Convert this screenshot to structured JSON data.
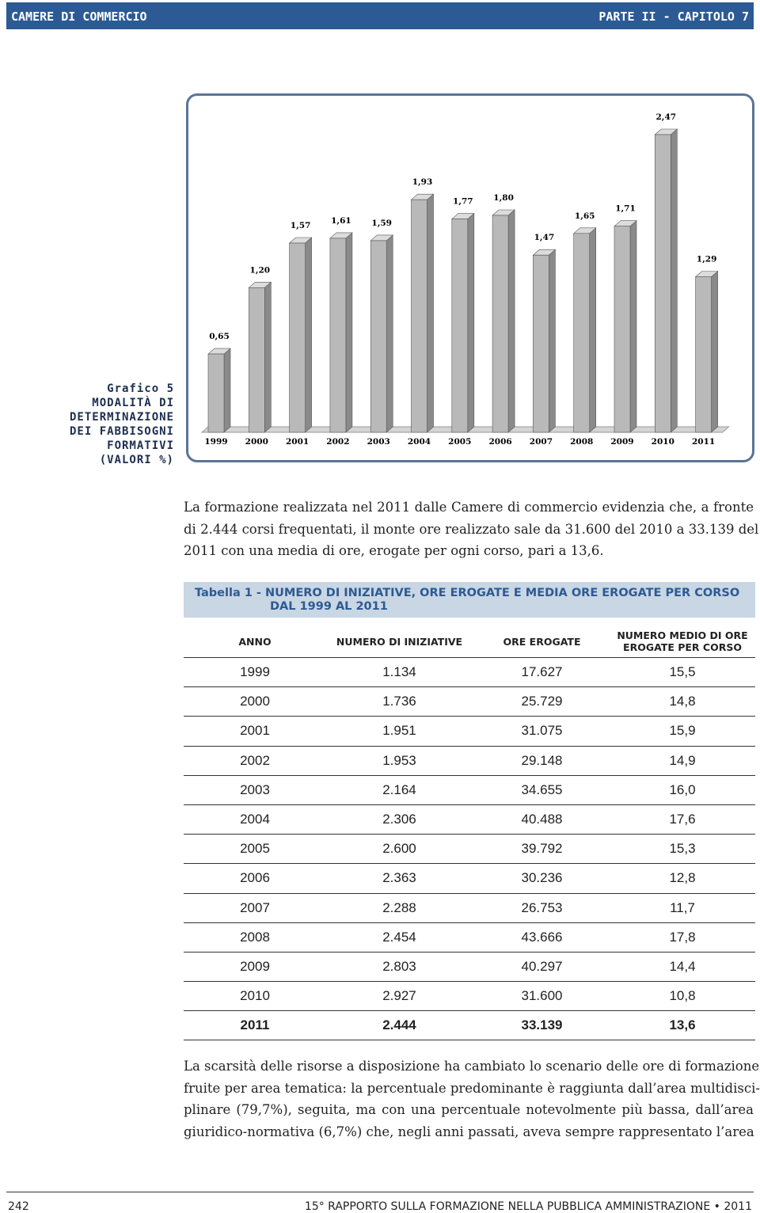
{
  "header": {
    "left": "CAMERE DI COMMERCIO",
    "right": "PARTE II - CAPITOLO 7"
  },
  "caption": [
    "Grafico 5",
    "MODALITÀ DI",
    "DETERMINAZIONE",
    "DEI FABBISOGNI",
    "FORMATIVI",
    "(VALORI %)"
  ],
  "chart_data": {
    "type": "bar3d",
    "categories": [
      "1999",
      "2000",
      "2001",
      "2002",
      "2003",
      "2004",
      "2005",
      "2006",
      "2007",
      "2008",
      "2009",
      "2010",
      "2011"
    ],
    "values": [
      0.65,
      1.2,
      1.57,
      1.61,
      1.59,
      1.93,
      1.77,
      1.8,
      1.47,
      1.65,
      1.71,
      2.47,
      1.29
    ],
    "value_labels": [
      "0,65",
      "1,20",
      "1,57",
      "1,61",
      "1,59",
      "1,93",
      "1,77",
      "1,80",
      "1,47",
      "1,65",
      "1,71",
      "2,47",
      "1,29"
    ],
    "color": "#b9b9b9"
  },
  "paragraph1": [
    "La formazione realizzata nel 2011 dalle Camere di commercio evidenzia che, a fronte",
    "di 2.444 corsi frequentati, il monte ore realizzato sale da 31.600 del 2010 a 33.139 del",
    "2011 con una media di ore, erogate per ogni corso, pari a 13,6."
  ],
  "table": {
    "title": [
      "Tabella 1 - NUMERO DI INIZIATIVE, ORE EROGATE E MEDIA ORE EROGATE PER CORSO",
      "DAL 1999 AL 2011"
    ],
    "columns": [
      "ANNO",
      "NUMERO DI INIZIATIVE",
      "ORE EROGATE",
      "NUMERO MEDIO DI ORE EROGATE PER CORSO"
    ],
    "rows": [
      [
        "1999",
        "1.134",
        "17.627",
        "15,5"
      ],
      [
        "2000",
        "1.736",
        "25.729",
        "14,8"
      ],
      [
        "2001",
        "1.951",
        "31.075",
        "15,9"
      ],
      [
        "2002",
        "1.953",
        "29.148",
        "14,9"
      ],
      [
        "2003",
        "2.164",
        "34.655",
        "16,0"
      ],
      [
        "2004",
        "2.306",
        "40.488",
        "17,6"
      ],
      [
        "2005",
        "2.600",
        "39.792",
        "15,3"
      ],
      [
        "2006",
        "2.363",
        "30.236",
        "12,8"
      ],
      [
        "2007",
        "2.288",
        "26.753",
        "11,7"
      ],
      [
        "2008",
        "2.454",
        "43.666",
        "17,8"
      ],
      [
        "2009",
        "2.803",
        "40.297",
        "14,4"
      ],
      [
        "2010",
        "2.927",
        "31.600",
        "10,8"
      ],
      [
        "2011",
        "2.444",
        "33.139",
        "13,6"
      ]
    ]
  },
  "paragraph2": [
    "La scarsità delle risorse a disposizione ha cambiato lo scenario delle ore di formazione",
    "fruite per area tematica: la percentuale predominante è raggiunta dall’area multidisci-",
    "plinare (79,7%), seguita, ma con una percentuale notevolmente più bassa, dall’area",
    "giuridico-normativa (6,7%) che, negli anni passati, aveva sempre rappresentato l’area"
  ],
  "footer": {
    "page": "242",
    "title": "15° RAPPORTO SULLA FORMAZIONE NELLA PUBBLICA AMMINISTRAZIONE • 2011"
  }
}
